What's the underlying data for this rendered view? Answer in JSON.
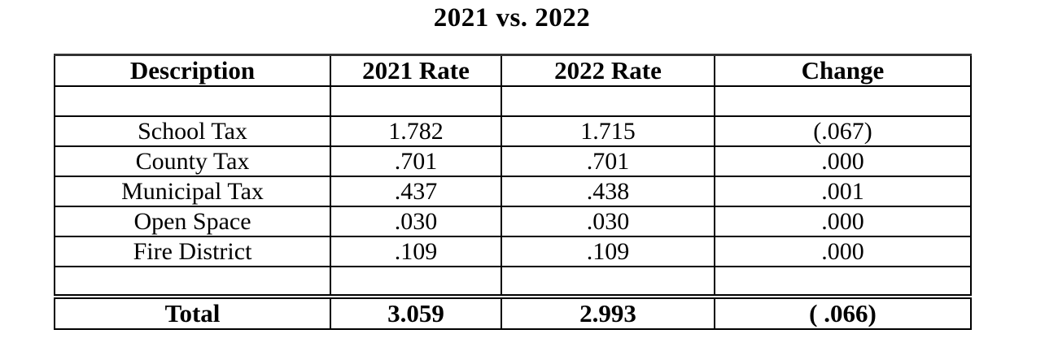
{
  "title": "2021 vs. 2022",
  "table": {
    "headers": {
      "description": "Description",
      "rate_2021": "2021 Rate",
      "rate_2022": "2022 Rate",
      "change": "Change"
    },
    "rows": [
      {
        "description": "School Tax",
        "rate_2021": "1.782",
        "rate_2022": "1.715",
        "change": "(.067)"
      },
      {
        "description": "County Tax",
        "rate_2021": ".701",
        "rate_2022": ".701",
        "change": ".000"
      },
      {
        "description": "Municipal Tax",
        "rate_2021": ".437",
        "rate_2022": ".438",
        "change": ".001"
      },
      {
        "description": "Open Space",
        "rate_2021": ".030",
        "rate_2022": ".030",
        "change": ".000"
      },
      {
        "description": "Fire District",
        "rate_2021": ".109",
        "rate_2022": ".109",
        "change": ".000"
      }
    ],
    "total": {
      "label": "Total",
      "rate_2021": "3.059",
      "rate_2022": "2.993",
      "change": "( .066)"
    }
  },
  "colors": {
    "text": "#000000",
    "border": "#000000",
    "background": "#ffffff"
  }
}
